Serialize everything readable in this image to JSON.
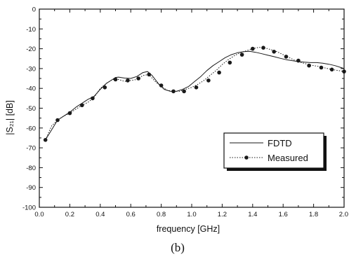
{
  "chart_data": {
    "type": "line",
    "xlabel": "frequency  [GHz]",
    "ylabel": "|S₂₁| [dB]",
    "caption": "(b)",
    "xlim": [
      0.0,
      2.0
    ],
    "ylim": [
      -100,
      0
    ],
    "xticks": [
      "0.0",
      "0.2",
      "0.4",
      "0.6",
      "0.8",
      "1.0",
      "1.2",
      "1.4",
      "1.6",
      "1.8",
      "2.0"
    ],
    "yticks": [
      "0",
      "-10",
      "-20",
      "-30",
      "-40",
      "-50",
      "-60",
      "-70",
      "-80",
      "-90",
      "-100"
    ],
    "legend_position": "lower-right",
    "series": [
      {
        "name": "FDTD",
        "style": "solid",
        "color": "#1a1a1a",
        "x": [
          0.04,
          0.08,
          0.12,
          0.16,
          0.2,
          0.24,
          0.28,
          0.32,
          0.36,
          0.4,
          0.44,
          0.48,
          0.5,
          0.52,
          0.56,
          0.6,
          0.64,
          0.68,
          0.71,
          0.74,
          0.78,
          0.82,
          0.86,
          0.9,
          0.94,
          0.98,
          1.02,
          1.06,
          1.1,
          1.14,
          1.18,
          1.22,
          1.26,
          1.3,
          1.34,
          1.38,
          1.42,
          1.46,
          1.5,
          1.54,
          1.58,
          1.62,
          1.66,
          1.7,
          1.74,
          1.78,
          1.82,
          1.86,
          1.9,
          1.94,
          1.98,
          2.0
        ],
        "y": [
          -66,
          -61,
          -56,
          -54,
          -52,
          -49.5,
          -47.5,
          -45.5,
          -44,
          -40.5,
          -37.5,
          -35.5,
          -34.5,
          -34.3,
          -34.8,
          -35,
          -34,
          -32,
          -31.5,
          -33.5,
          -37.5,
          -40.5,
          -41.5,
          -41.5,
          -40.5,
          -39,
          -36.5,
          -34,
          -31,
          -28.5,
          -26.5,
          -24.5,
          -23,
          -22,
          -21.5,
          -21.3,
          -21.8,
          -22.5,
          -23.3,
          -24,
          -24.8,
          -25.5,
          -26,
          -26.5,
          -26.8,
          -27,
          -27,
          -27.3,
          -27.8,
          -28.5,
          -29.5,
          -30
        ]
      },
      {
        "name": "Measured",
        "style": "dotted-markers",
        "color": "#1a1a1a",
        "x": [
          0.04,
          0.08,
          0.12,
          0.16,
          0.2,
          0.24,
          0.28,
          0.32,
          0.36,
          0.4,
          0.44,
          0.48,
          0.52,
          0.56,
          0.6,
          0.64,
          0.68,
          0.72,
          0.76,
          0.8,
          0.84,
          0.88,
          0.92,
          0.96,
          1.0,
          1.04,
          1.08,
          1.12,
          1.16,
          1.2,
          1.24,
          1.28,
          1.32,
          1.36,
          1.4,
          1.44,
          1.48,
          1.52,
          1.56,
          1.6,
          1.64,
          1.68,
          1.72,
          1.76,
          1.8,
          1.84,
          1.88,
          1.92,
          1.96,
          2.0
        ],
        "y": [
          -66,
          -59,
          -56,
          -54,
          -52.5,
          -50.5,
          -48.5,
          -47,
          -44.5,
          -40,
          -37.5,
          -35.5,
          -35.5,
          -36.5,
          -36,
          -35.5,
          -33.5,
          -33,
          -36.5,
          -39,
          -41,
          -41.5,
          -41.5,
          -40.5,
          -39.5,
          -38,
          -36,
          -33.5,
          -31,
          -28,
          -25.5,
          -23.5,
          -22,
          -21,
          -20,
          -19.3,
          -19.5,
          -20.5,
          -21.5,
          -23,
          -24.5,
          -26,
          -27,
          -27.8,
          -28.5,
          -29,
          -29.8,
          -30.5,
          -31,
          -31.5
        ],
        "marker_x": [
          0.04,
          0.12,
          0.2,
          0.28,
          0.35,
          0.43,
          0.5,
          0.58,
          0.65,
          0.72,
          0.8,
          0.88,
          0.95,
          1.03,
          1.11,
          1.18,
          1.25,
          1.33,
          1.4,
          1.47,
          1.54,
          1.62,
          1.7,
          1.77,
          1.85,
          1.92,
          2.0
        ],
        "marker_y": [
          -66,
          -56,
          -52.5,
          -48.5,
          -45,
          -39.5,
          -35.5,
          -36,
          -35,
          -33,
          -38.5,
          -41.5,
          -41.5,
          -39.5,
          -36,
          -32,
          -27,
          -23,
          -20,
          -19.5,
          -21.5,
          -24,
          -26,
          -28.5,
          -29.5,
          -30.5,
          -31.5
        ]
      }
    ]
  }
}
